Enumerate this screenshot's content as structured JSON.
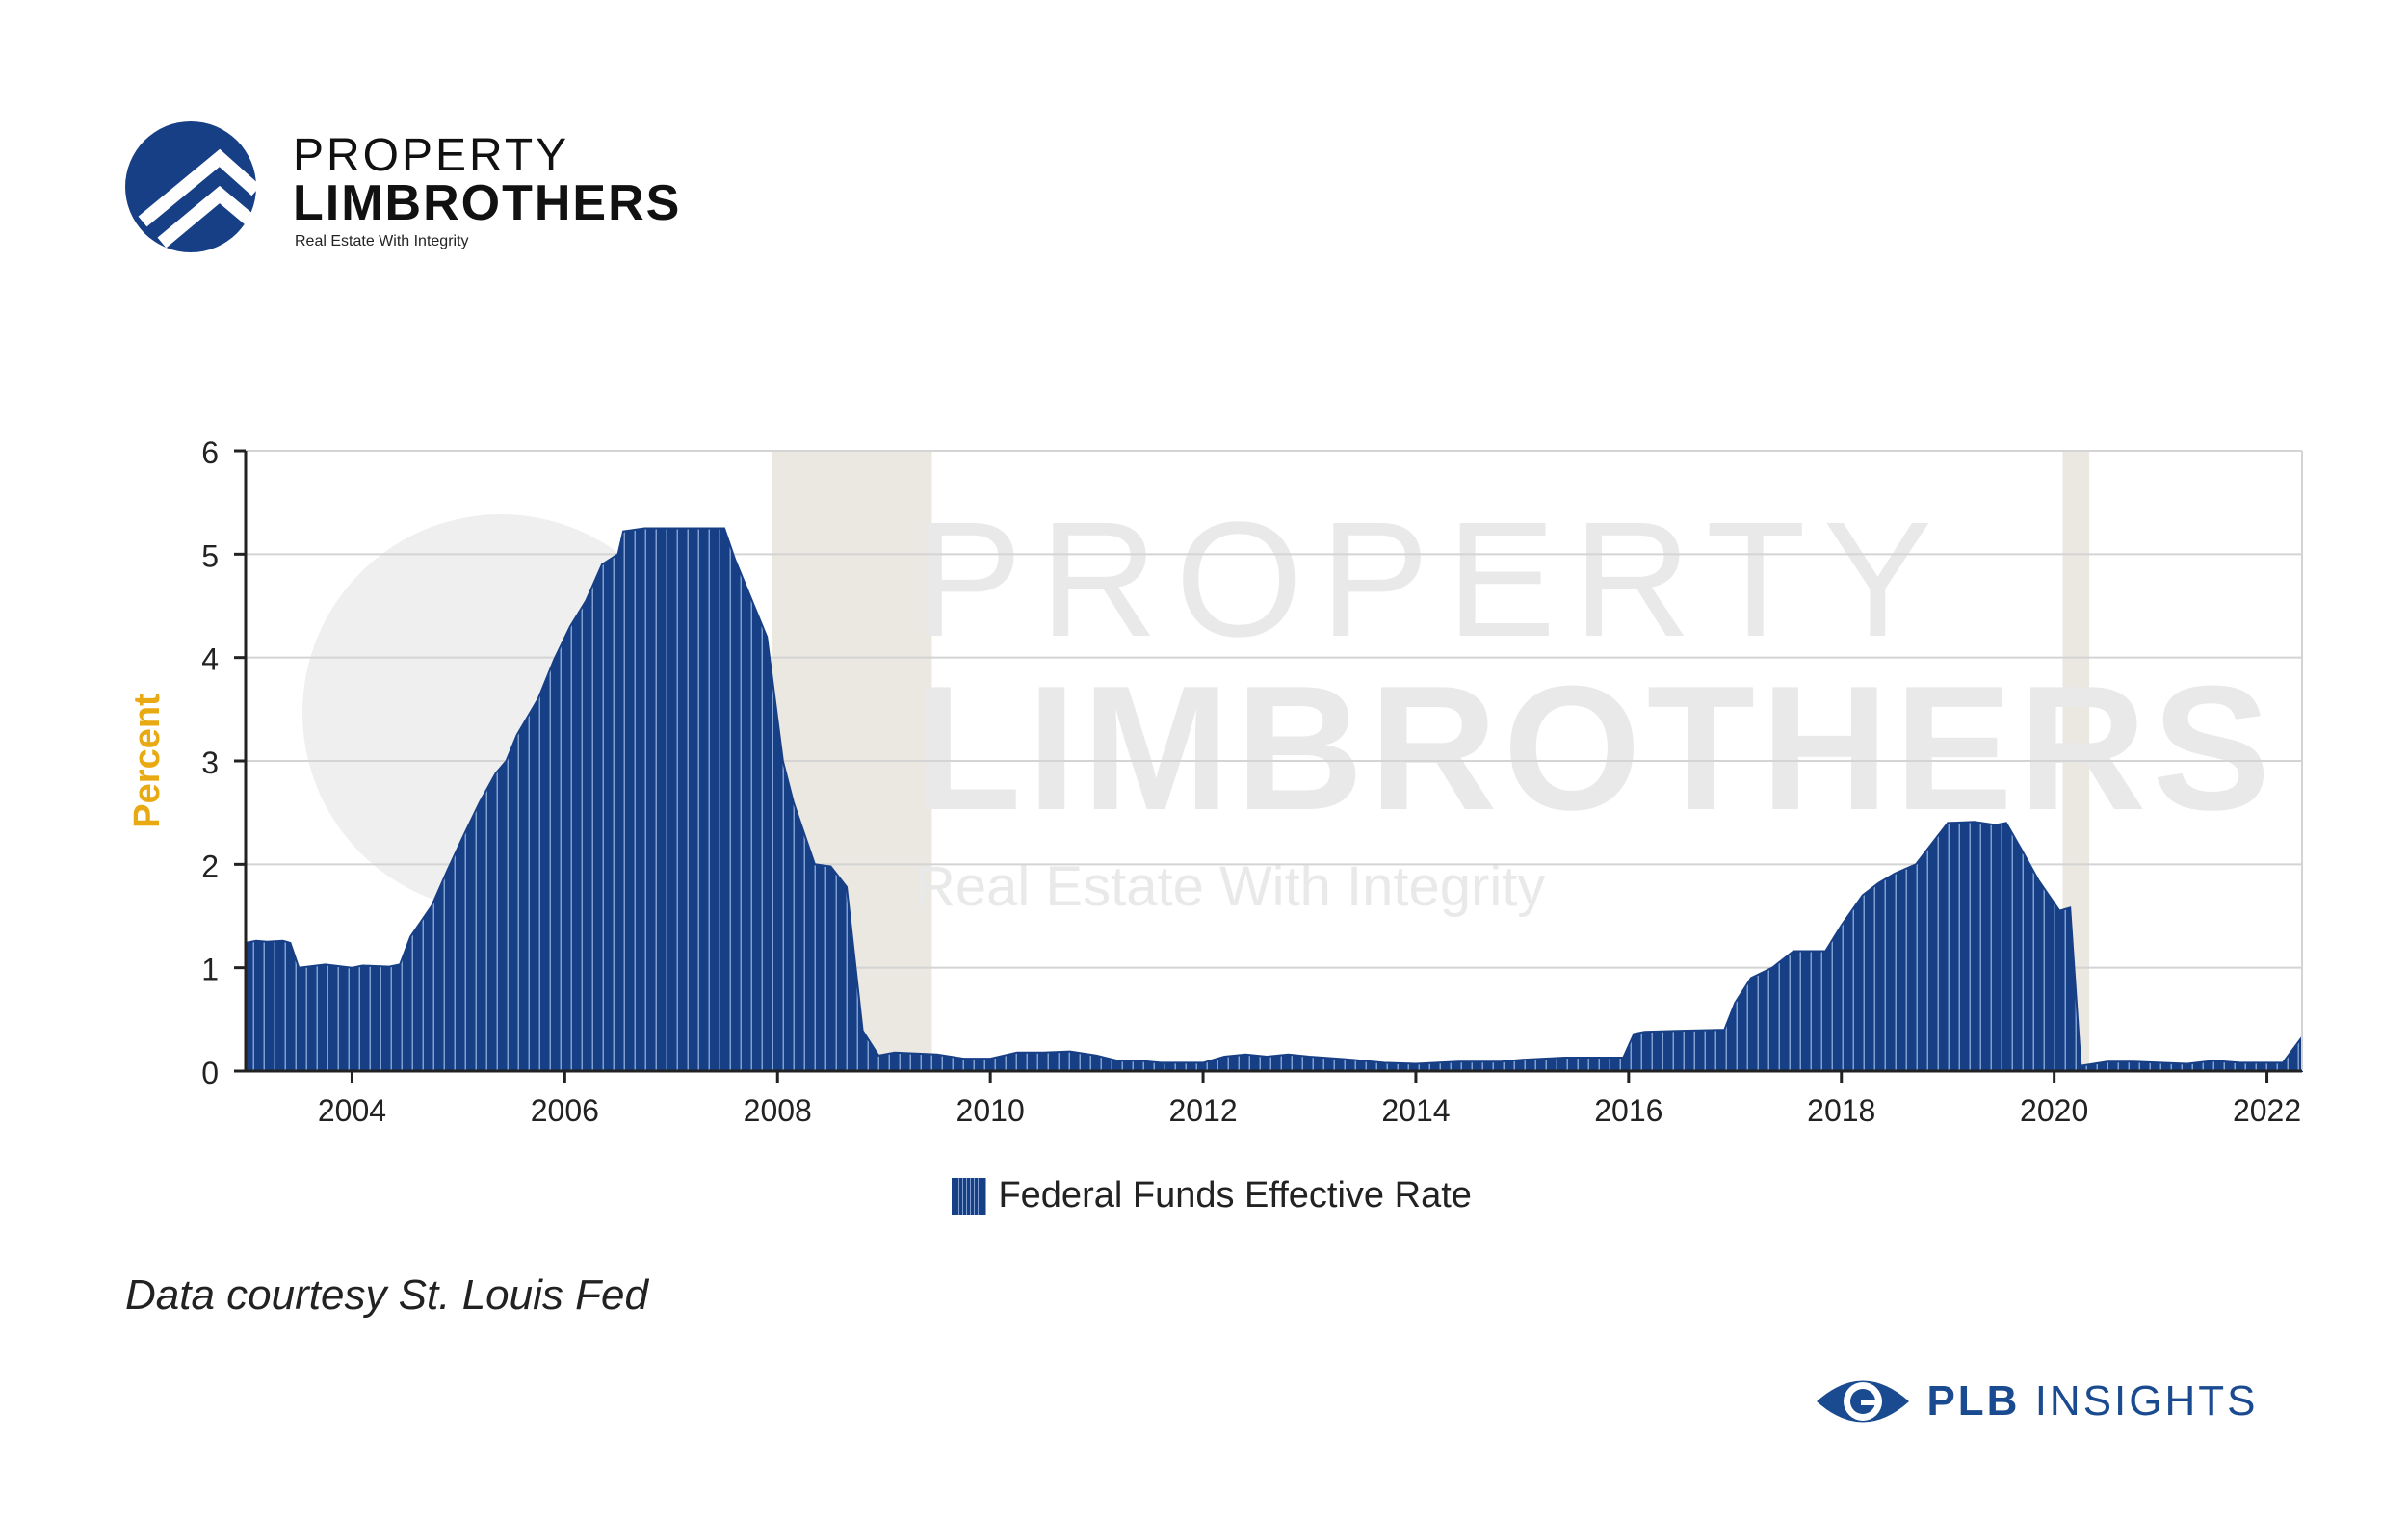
{
  "brand": {
    "line1": "PROPERTY",
    "line2": "LIMBROTHERS",
    "tagline": "Real Estate With Integrity",
    "color": "#173f86"
  },
  "watermark": {
    "line1": "PROPERTY",
    "line2": "LIMBROTHERS",
    "line3": "Real Estate With Integrity"
  },
  "caption": "Data courtesy St. Louis Fed",
  "footer": {
    "bold": "PLB",
    "rest": "INSIGHTS",
    "icon": "eye-icon"
  },
  "chart_data": {
    "type": "area",
    "title": "",
    "xlabel": "",
    "ylabel": "Percent",
    "xlim": [
      2003.0,
      2022.33
    ],
    "ylim": [
      0,
      6
    ],
    "y_ticks": [
      0,
      1,
      2,
      3,
      4,
      5,
      6
    ],
    "x_ticks": [
      2004,
      2006,
      2008,
      2010,
      2012,
      2014,
      2016,
      2018,
      2020,
      2022
    ],
    "grid": "horizontal",
    "legend_position": "bottom-center",
    "series": [
      {
        "name": "Federal Funds Effective Rate",
        "color": "#173f86",
        "x": [
          2003.0,
          2003.1,
          2003.2,
          2003.35,
          2003.42,
          2003.5,
          2003.75,
          2004.0,
          2004.1,
          2004.35,
          2004.45,
          2004.55,
          2004.75,
          2004.9,
          2005.05,
          2005.2,
          2005.35,
          2005.45,
          2005.55,
          2005.75,
          2005.9,
          2006.05,
          2006.2,
          2006.35,
          2006.5,
          2006.55,
          2006.75,
          2007.0,
          2007.25,
          2007.5,
          2007.6,
          2007.7,
          2007.9,
          2008.05,
          2008.15,
          2008.35,
          2008.5,
          2008.65,
          2008.8,
          2008.95,
          2009.1,
          2009.3,
          2009.5,
          2009.75,
          2010.0,
          2010.25,
          2010.5,
          2010.75,
          2011.0,
          2011.2,
          2011.4,
          2011.6,
          2011.8,
          2012.0,
          2012.2,
          2012.4,
          2012.6,
          2012.8,
          2013.0,
          2013.4,
          2013.7,
          2014.0,
          2014.4,
          2014.8,
          2015.0,
          2015.4,
          2015.8,
          2015.95,
          2016.05,
          2016.15,
          2016.5,
          2016.9,
          2017.0,
          2017.15,
          2017.35,
          2017.55,
          2017.85,
          2018.0,
          2018.2,
          2018.35,
          2018.5,
          2018.7,
          2018.85,
          2019.0,
          2019.25,
          2019.45,
          2019.55,
          2019.7,
          2019.85,
          2020.05,
          2020.15,
          2020.25,
          2020.5,
          2020.75,
          2021.0,
          2021.25,
          2021.5,
          2021.75,
          2022.0,
          2022.15,
          2022.33
        ],
        "values": [
          1.24,
          1.26,
          1.25,
          1.26,
          1.24,
          1.0,
          1.03,
          1.0,
          1.02,
          1.01,
          1.03,
          1.3,
          1.6,
          1.95,
          2.28,
          2.6,
          2.88,
          3.0,
          3.25,
          3.6,
          3.98,
          4.3,
          4.55,
          4.9,
          5.0,
          5.22,
          5.25,
          5.25,
          5.25,
          5.25,
          4.95,
          4.7,
          4.2,
          3.0,
          2.6,
          2.0,
          1.98,
          1.78,
          0.39,
          0.15,
          0.18,
          0.17,
          0.16,
          0.12,
          0.12,
          0.18,
          0.18,
          0.19,
          0.15,
          0.1,
          0.1,
          0.08,
          0.08,
          0.08,
          0.14,
          0.16,
          0.14,
          0.16,
          0.14,
          0.11,
          0.08,
          0.07,
          0.09,
          0.09,
          0.11,
          0.13,
          0.13,
          0.13,
          0.36,
          0.38,
          0.39,
          0.4,
          0.66,
          0.9,
          1.0,
          1.16,
          1.16,
          1.41,
          1.7,
          1.82,
          1.91,
          2.0,
          2.2,
          2.4,
          2.41,
          2.38,
          2.4,
          2.13,
          1.85,
          1.55,
          1.58,
          0.05,
          0.09,
          0.09,
          0.08,
          0.07,
          0.1,
          0.08,
          0.08,
          0.08,
          0.33
        ]
      }
    ],
    "recessions": [
      [
        2007.95,
        2009.45
      ],
      [
        2020.08,
        2020.33
      ]
    ]
  }
}
